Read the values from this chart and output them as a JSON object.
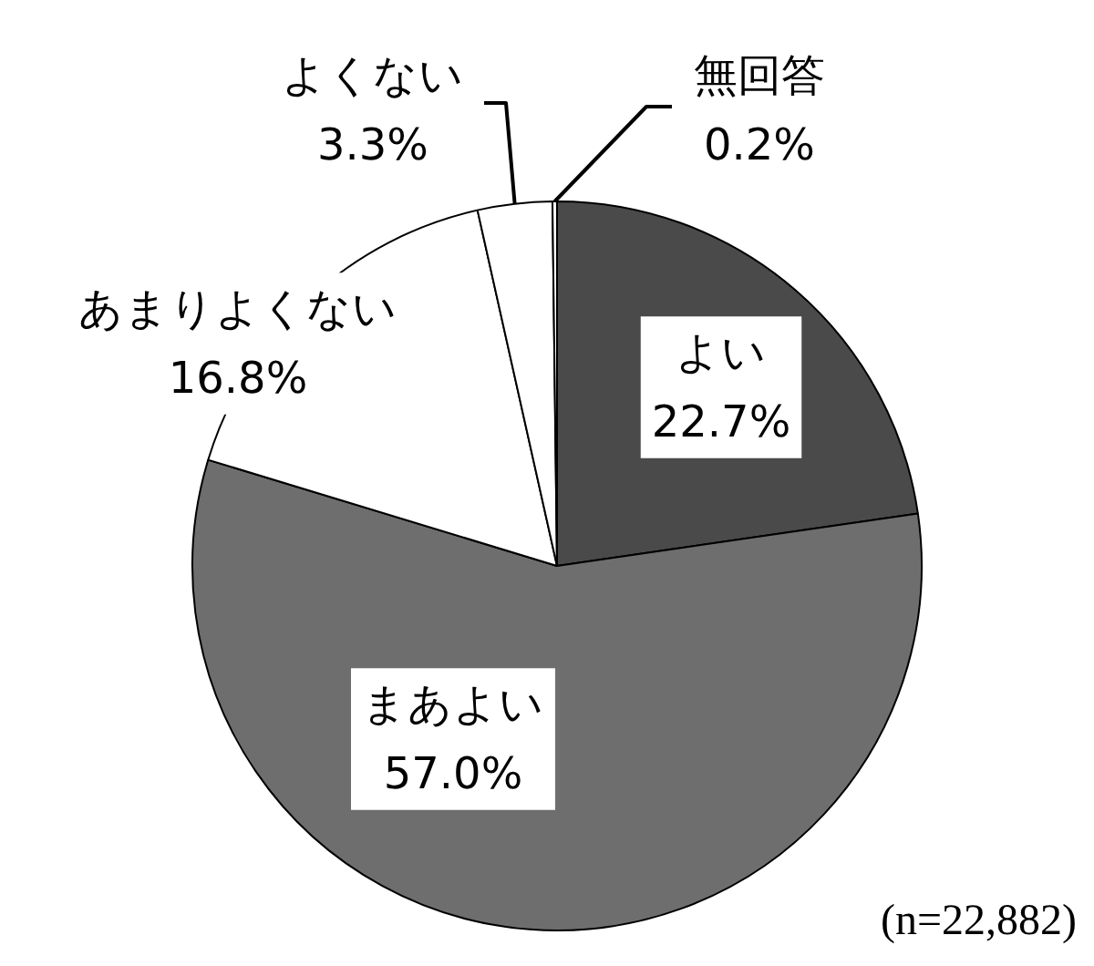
{
  "chart_data": {
    "type": "pie",
    "categories": [
      "よい",
      "まあよい",
      "あまりよくない",
      "よくない",
      "無回答"
    ],
    "values": [
      22.7,
      57.0,
      16.8,
      3.3,
      0.2
    ],
    "colors": [
      "#4a4a4a",
      "#6e6e6e",
      "#ffffff",
      "#ffffff",
      "#ffffff"
    ],
    "value_labels": [
      "22.7%",
      "57.0%",
      "16.8%",
      "3.3%",
      "0.2%"
    ],
    "annotations": [
      "(n=22,882)"
    ]
  }
}
